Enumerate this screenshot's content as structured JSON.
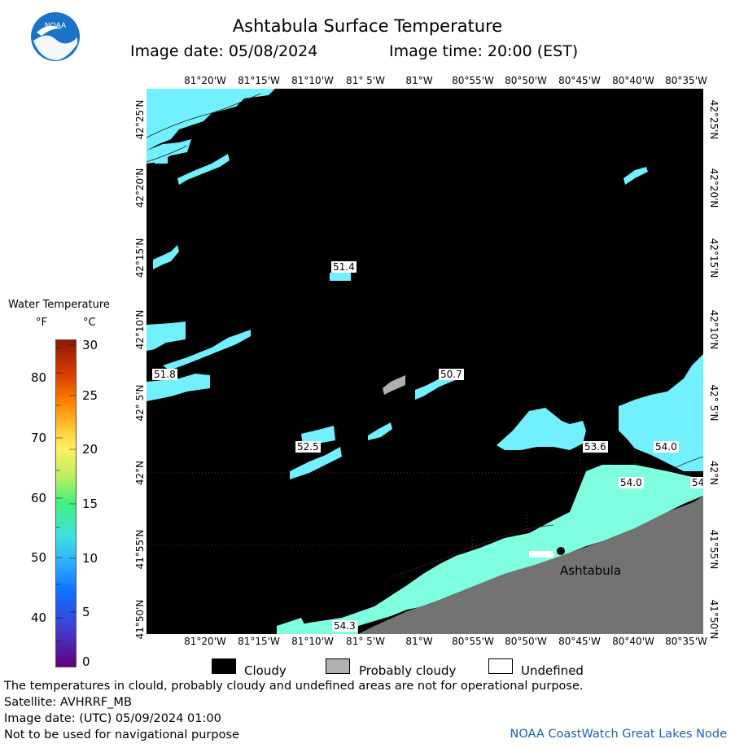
{
  "header": {
    "title": "Ashtabula Surface Temperature",
    "image_date": "Image date: 05/08/2024",
    "image_time": "Image time: 20:00 (EST)"
  },
  "logo": {
    "text": "NOAA"
  },
  "map": {
    "longitude_labels": [
      "81°20'W",
      "81°15'W",
      "81°10'W",
      "81° 5'W",
      "81°W",
      "80°55'W",
      "80°50'W",
      "80°45'W",
      "80°40'W",
      "80°35'W"
    ],
    "latitude_labels": [
      "42°25'N",
      "42°20'N",
      "42°15'N",
      "42°10'N",
      "42° 5'N",
      "42°N",
      "41°55'N",
      "41°50'N"
    ],
    "temperature_labels": [
      "51.4",
      "51.8",
      "50.7",
      "52.5",
      "53.6",
      "54.0",
      "54.0",
      "54",
      "54.3"
    ],
    "city": "Ashtabula",
    "colors": {
      "cloud": "#000000",
      "probably_cloudy": "#b0b0b0",
      "land": "#737373",
      "water_cool": "#73f0ff",
      "water_warm": "#80ffe0"
    }
  },
  "legend": {
    "title": "Water Temperature",
    "unit_f": "°F",
    "unit_c": "°C",
    "fahrenheit_ticks": [
      "80",
      "70",
      "60",
      "50",
      "40"
    ],
    "celsius_ticks": [
      "30",
      "25",
      "20",
      "15",
      "10",
      "5",
      "0"
    ],
    "categories": [
      "Cloudy",
      "Probably cloudy",
      "Undefined"
    ]
  },
  "footer": {
    "disclaimer": "The temperatures in clould, probably cloudy and undefined areas are not for operational purpose.",
    "satellite": "Satellite: AVHRRF_MB",
    "utc_date": "Image date: (UTC) 05/09/2024  01:00",
    "navigation": "Not to be used for navigational purpose",
    "credit": "NOAA CoastWatch Great Lakes Node"
  }
}
